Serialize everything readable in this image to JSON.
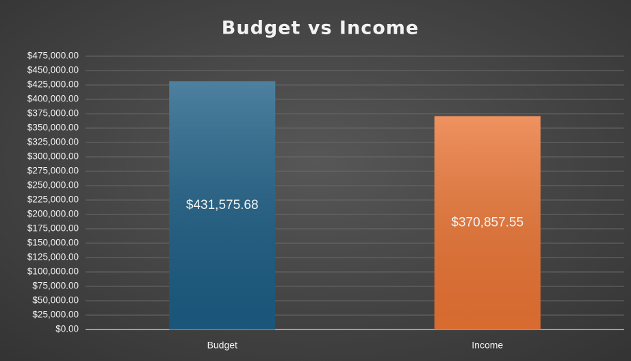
{
  "chart_data": {
    "type": "bar",
    "title": "Budget vs Income",
    "categories": [
      "Budget",
      "Income"
    ],
    "values": [
      431575.68,
      370857.55
    ],
    "value_labels": [
      "$431,575.68",
      "$370,857.55"
    ],
    "colors": [
      "#1c5d84",
      "#ea7434"
    ],
    "ylim": [
      0,
      475000
    ],
    "yticks": [
      {
        "value": 0,
        "label": "$0.00"
      },
      {
        "value": 25000,
        "label": "$25,000.00"
      },
      {
        "value": 50000,
        "label": "$50,000.00"
      },
      {
        "value": 75000,
        "label": "$75,000.00"
      },
      {
        "value": 100000,
        "label": "$100,000.00"
      },
      {
        "value": 125000,
        "label": "$125,000.00"
      },
      {
        "value": 150000,
        "label": "$150,000.00"
      },
      {
        "value": 175000,
        "label": "$175,000.00"
      },
      {
        "value": 200000,
        "label": "$200,000.00"
      },
      {
        "value": 225000,
        "label": "$225,000.00"
      },
      {
        "value": 250000,
        "label": "$250,000.00"
      },
      {
        "value": 275000,
        "label": "$275,000.00"
      },
      {
        "value": 300000,
        "label": "$300,000.00"
      },
      {
        "value": 325000,
        "label": "$325,000.00"
      },
      {
        "value": 350000,
        "label": "$350,000.00"
      },
      {
        "value": 375000,
        "label": "$375,000.00"
      },
      {
        "value": 400000,
        "label": "$400,000.00"
      },
      {
        "value": 425000,
        "label": "$425,000.00"
      },
      {
        "value": 450000,
        "label": "$450,000.00"
      },
      {
        "value": 475000,
        "label": "$475,000.00"
      }
    ],
    "grid": true
  }
}
